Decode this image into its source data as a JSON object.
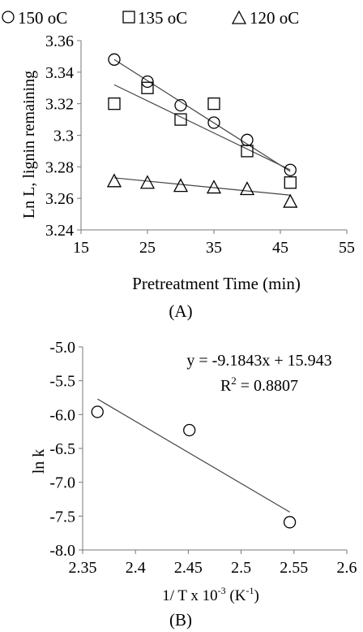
{
  "chart_data": [
    {
      "type": "scatter",
      "panel_label": "(A)",
      "xlabel": "Pretreatment Time (min)",
      "ylabel": "Ln L, lignin remaining",
      "xlim": [
        15,
        55
      ],
      "ylim": [
        3.24,
        3.36
      ],
      "x_ticks": [
        "15",
        "25",
        "35",
        "45",
        "55"
      ],
      "y_ticks": [
        "3.24",
        "3.26",
        "3.28",
        "3.3",
        "3.32",
        "3.34",
        "3.36"
      ],
      "grid": false,
      "legend_position": "top",
      "series": [
        {
          "name": "150 oC",
          "marker": "circle",
          "x": [
            20,
            25,
            30,
            35,
            40,
            46.5
          ],
          "y": [
            3.348,
            3.334,
            3.319,
            3.308,
            3.297,
            3.278
          ],
          "trendline": [
            [
              20,
              3.348
            ],
            [
              46.5,
              3.277
            ]
          ]
        },
        {
          "name": "135 oC",
          "marker": "square",
          "x": [
            20,
            25,
            30,
            35,
            40,
            46.5
          ],
          "y": [
            3.32,
            3.33,
            3.31,
            3.32,
            3.29,
            3.27
          ],
          "trendline": [
            [
              20,
              3.332
            ],
            [
              46.5,
              3.278
            ]
          ]
        },
        {
          "name": "120 oC",
          "marker": "triangle",
          "x": [
            20,
            25,
            30,
            35,
            40,
            46.5
          ],
          "y": [
            3.271,
            3.27,
            3.268,
            3.267,
            3.266,
            3.258
          ],
          "trendline": [
            [
              20,
              3.273
            ],
            [
              46.5,
              3.262
            ]
          ]
        }
      ]
    },
    {
      "type": "scatter",
      "panel_label": "(B)",
      "xlabel_main": "1/ T x  10",
      "xlabel_sup1": "-3",
      "xlabel_mid": " (K",
      "xlabel_sup2": "-1",
      "xlabel_end": ")",
      "ylabel": "ln k",
      "xlim": [
        2.35,
        2.6
      ],
      "ylim": [
        -8.0,
        -5.0
      ],
      "x_ticks": [
        "2.35",
        "2.4",
        "2.45",
        "2.5",
        "2.55",
        "2.6"
      ],
      "y_ticks": [
        "-8.0",
        "-7.5",
        "-7.0",
        "-6.5",
        "-6.0",
        "-5.5",
        "-5.0"
      ],
      "grid": false,
      "series": [
        {
          "marker": "circle",
          "x": [
            2.364,
            2.451,
            2.546
          ],
          "y": [
            -5.96,
            -6.23,
            -7.59
          ],
          "trendline": [
            [
              2.364,
              -5.77
            ],
            [
              2.546,
              -7.44
            ]
          ]
        }
      ],
      "annotations": {
        "equation": "y = -9.1843x + 15.943",
        "r2_label": "R",
        "r2_sup": "2",
        "r2_value": " = 0.8807"
      }
    }
  ]
}
